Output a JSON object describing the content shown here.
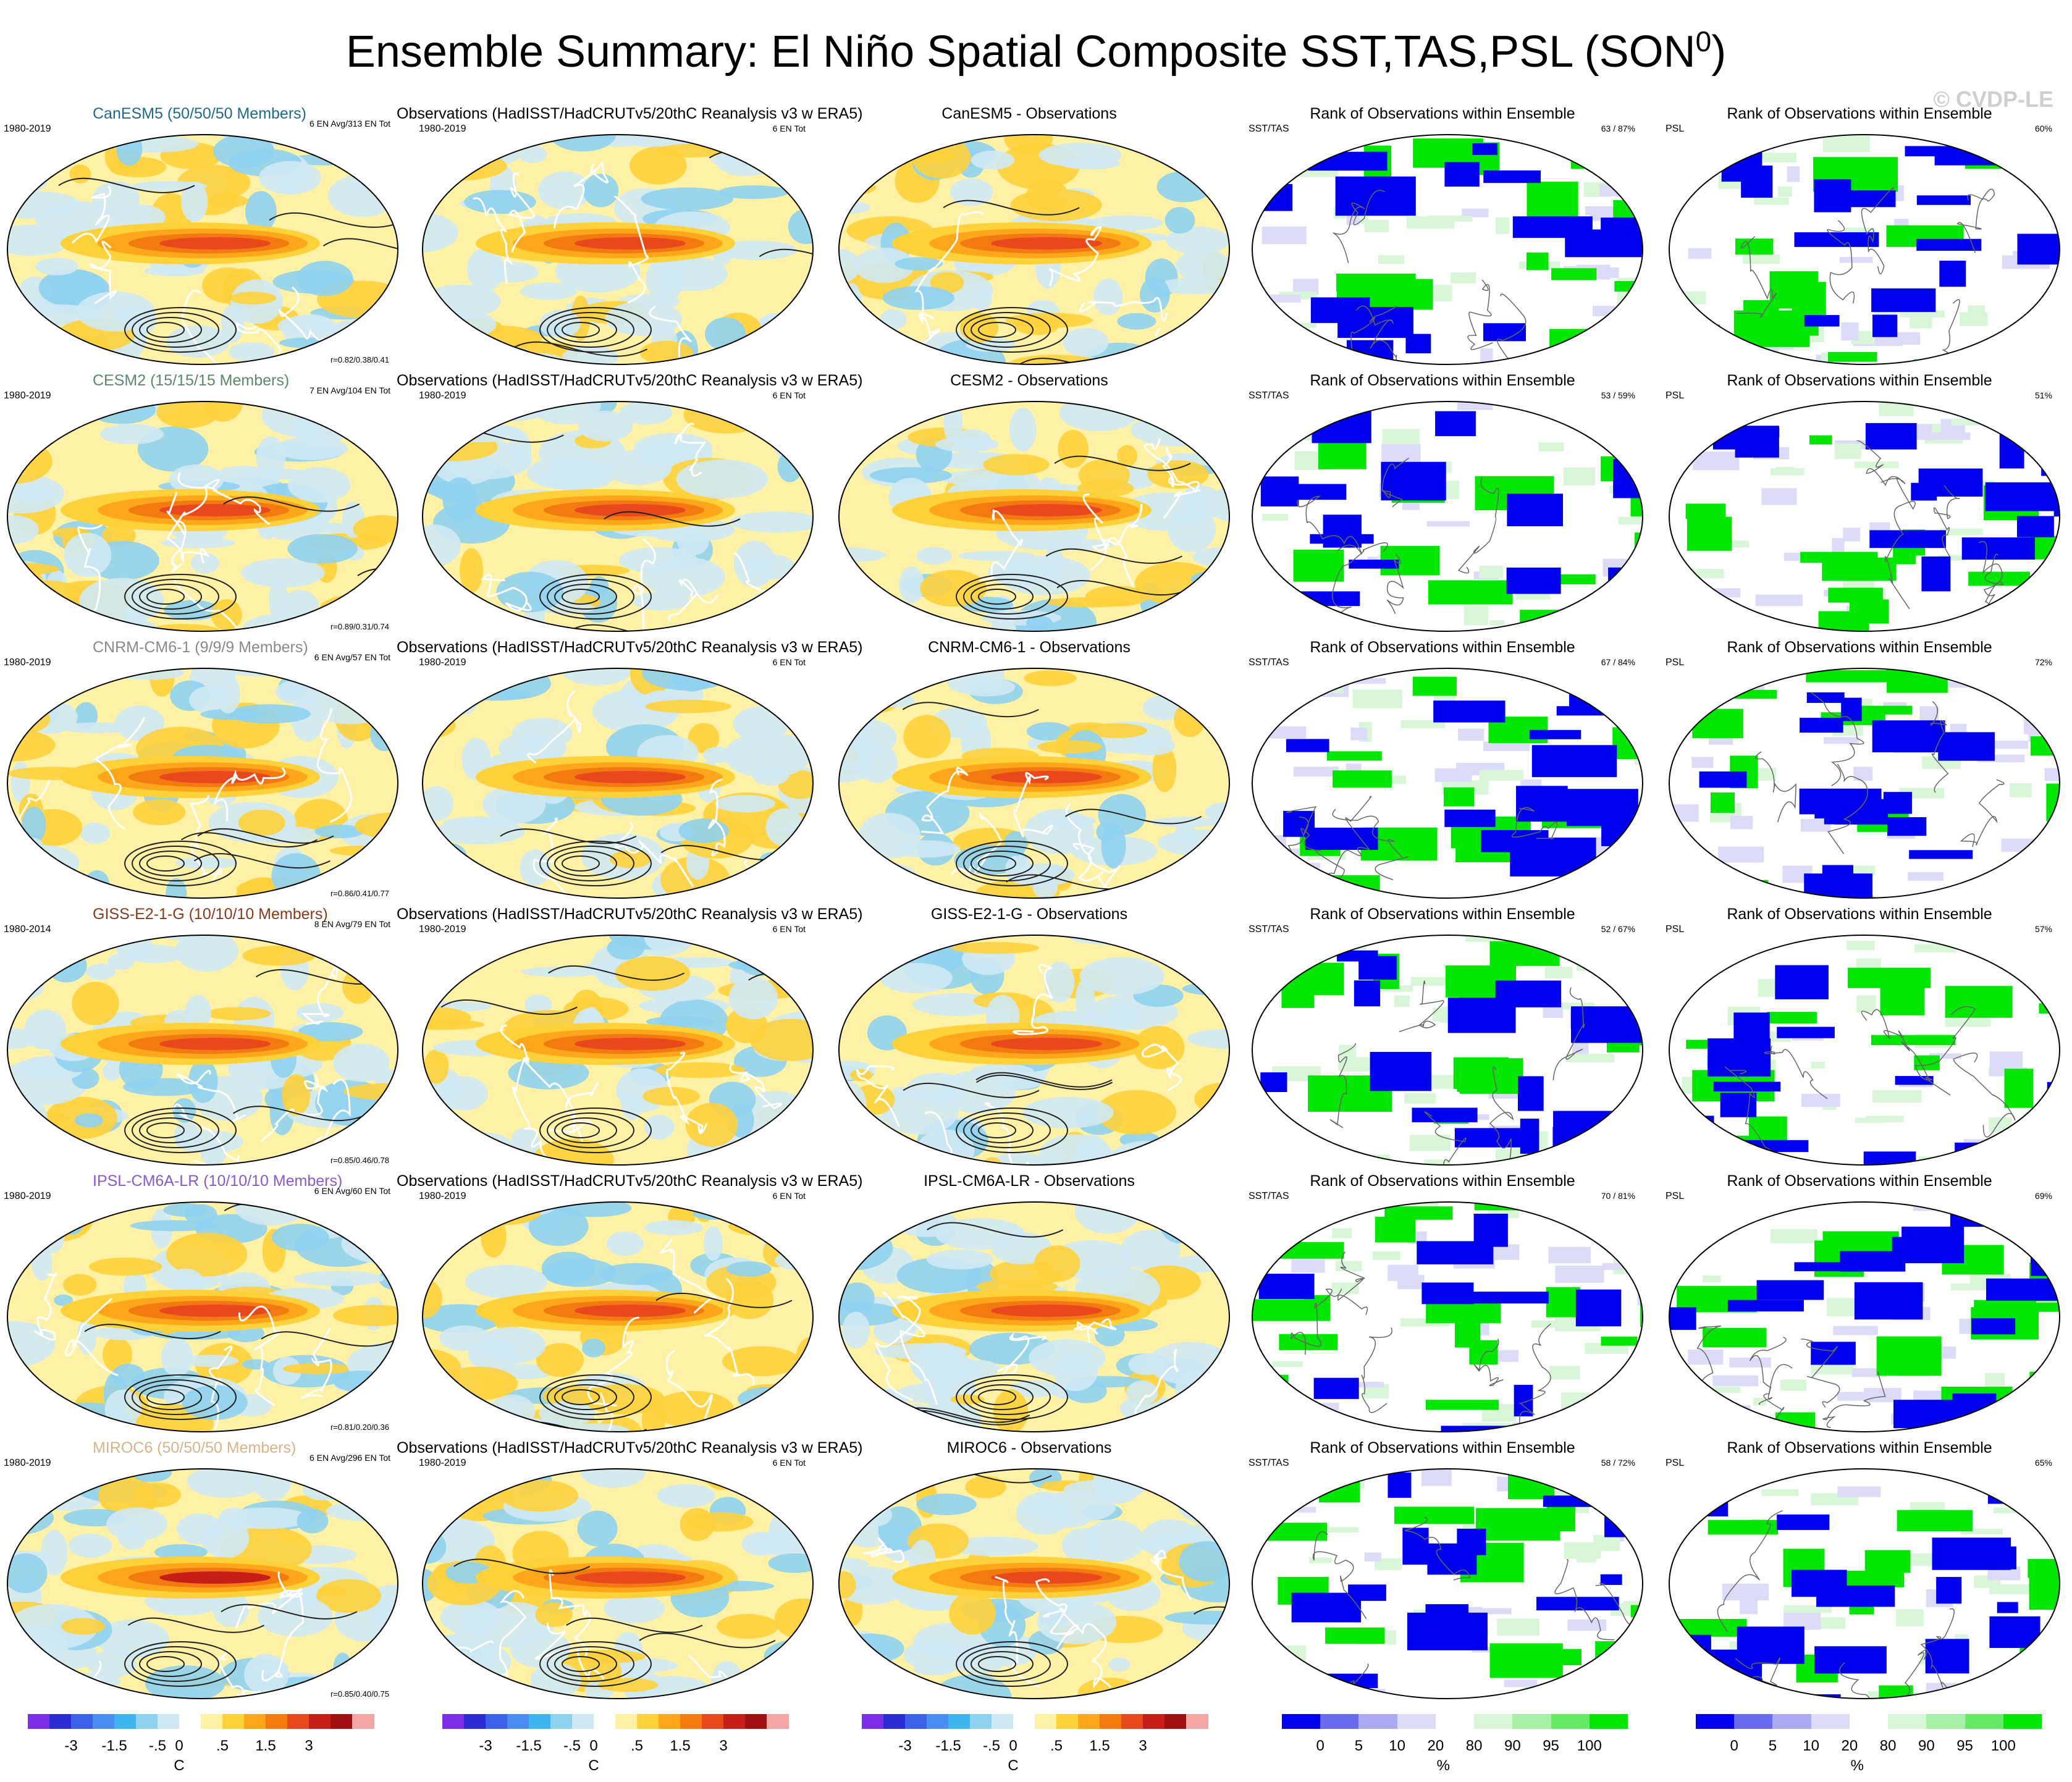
{
  "title": "Ensemble Summary: El Niño Spatial Composite SST,TAS,PSL (SON",
  "title_sup": "0",
  "title_close": ")",
  "watermark": "© CVDP-LE",
  "obs_title": "Observations (HadISST/HadCRUTv5/20thC Reanalysis v3 w ERA5)",
  "rank_title": "Rank of Observations within Ensemble",
  "obs_years": "1980-2019",
  "obs_count": "6 EN Tot",
  "sst_label": "SST/TAS",
  "psl_label": "PSL",
  "colors": {
    "temp_scale": [
      "#7b2ee6",
      "#2b2bd6",
      "#3b62e6",
      "#4a8cf0",
      "#3fb4ee",
      "#8fd2f0",
      "#cfe9f4",
      "#ffffff",
      "#fff2a6",
      "#ffd23c",
      "#ffa61a",
      "#f27a10",
      "#e8481c",
      "#c81e1a",
      "#a01010",
      "#f4a6a6"
    ],
    "rank_scale": [
      "#0000ee",
      "#6a6aee",
      "#aaaaf2",
      "#dcdcf8",
      "#ffffff",
      "#d9f6d9",
      "#a8f0a8",
      "#66ea66",
      "#00e600"
    ]
  },
  "rows": [
    {
      "model": "CanESM5 (50/50/50 Members)",
      "model_color": "#1f6a8a",
      "years": "1980-2019",
      "counts": "6 EN Avg/313 EN Tot",
      "r": "r=0.82/0.38/0.41",
      "diff_title": "CanESM5 - Observations",
      "sst_rank": "63 / 87%",
      "psl_rank": "60%"
    },
    {
      "model": "CESM2 (15/15/15 Members)",
      "model_color": "#5a8a6a",
      "years": "1980-2019",
      "counts": "7 EN Avg/104 EN Tot",
      "r": "r=0.89/0.31/0.74",
      "diff_title": "CESM2 - Observations",
      "sst_rank": "53 / 59%",
      "psl_rank": "51%"
    },
    {
      "model": "CNRM-CM6-1 (9/9/9 Members)",
      "model_color": "#8a8a8a",
      "years": "1980-2019",
      "counts": "6 EN Avg/57 EN Tot",
      "r": "r=0.86/0.41/0.77",
      "diff_title": "CNRM-CM6-1 - Observations",
      "sst_rank": "67 / 84%",
      "psl_rank": "72%"
    },
    {
      "model": "GISS-E2-1-G (10/10/10 Members)",
      "model_color": "#8a3a1a",
      "years": "1980-2014",
      "counts": "8 EN Avg/79 EN Tot",
      "r": "r=0.85/0.46/0.78",
      "diff_title": "GISS-E2-1-G - Observations",
      "sst_rank": "52 / 67%",
      "psl_rank": "57%"
    },
    {
      "model": "IPSL-CM6A-LR (10/10/10 Members)",
      "model_color": "#8a5ac8",
      "years": "1980-2019",
      "counts": "6 EN Avg/60 EN Tot",
      "r": "r=0.81/0.20/0.36",
      "diff_title": "IPSL-CM6A-LR - Observations",
      "sst_rank": "70 / 81%",
      "psl_rank": "69%"
    },
    {
      "model": "MIROC6 (50/50/50 Members)",
      "model_color": "#d8b48a",
      "years": "1980-2019",
      "counts": "6 EN Avg/296 EN Tot",
      "r": "r=0.85/0.40/0.75",
      "diff_title": "MIROC6 - Observations",
      "sst_rank": "58 / 72%",
      "psl_rank": "65%"
    }
  ],
  "colorbars": {
    "temp_ticks": [
      "-3",
      "-1.5",
      "-.5",
      "0",
      ".5",
      "1.5",
      "3"
    ],
    "temp_unit": "C",
    "rank_ticks": [
      "0",
      "5",
      "10",
      "20",
      "80",
      "90",
      "95",
      "100"
    ],
    "rank_unit": "%"
  }
}
